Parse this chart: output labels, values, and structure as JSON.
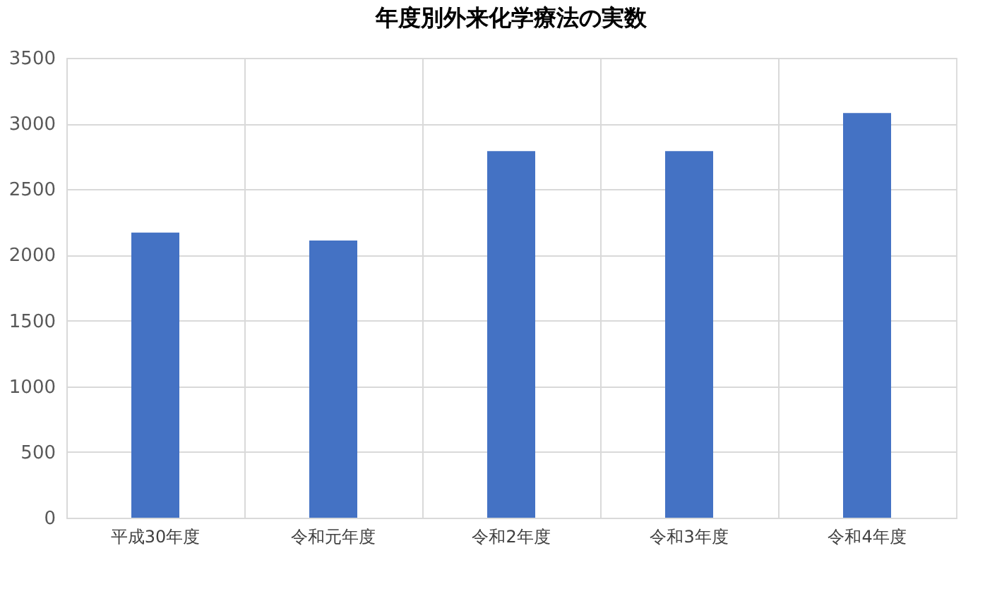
{
  "chart_data": {
    "type": "bar",
    "title": "年度別外来化学療法の実数",
    "categories": [
      "平成30年度",
      "令和元年度",
      "令和2年度",
      "令和3年度",
      "令和4年度"
    ],
    "values": [
      2170,
      2110,
      2790,
      2790,
      3080
    ],
    "color": "#4472c4",
    "ylim": [
      0,
      3500
    ],
    "yticks": [
      0,
      500,
      1000,
      1500,
      2000,
      2500,
      3000,
      3500
    ],
    "grid": true
  }
}
